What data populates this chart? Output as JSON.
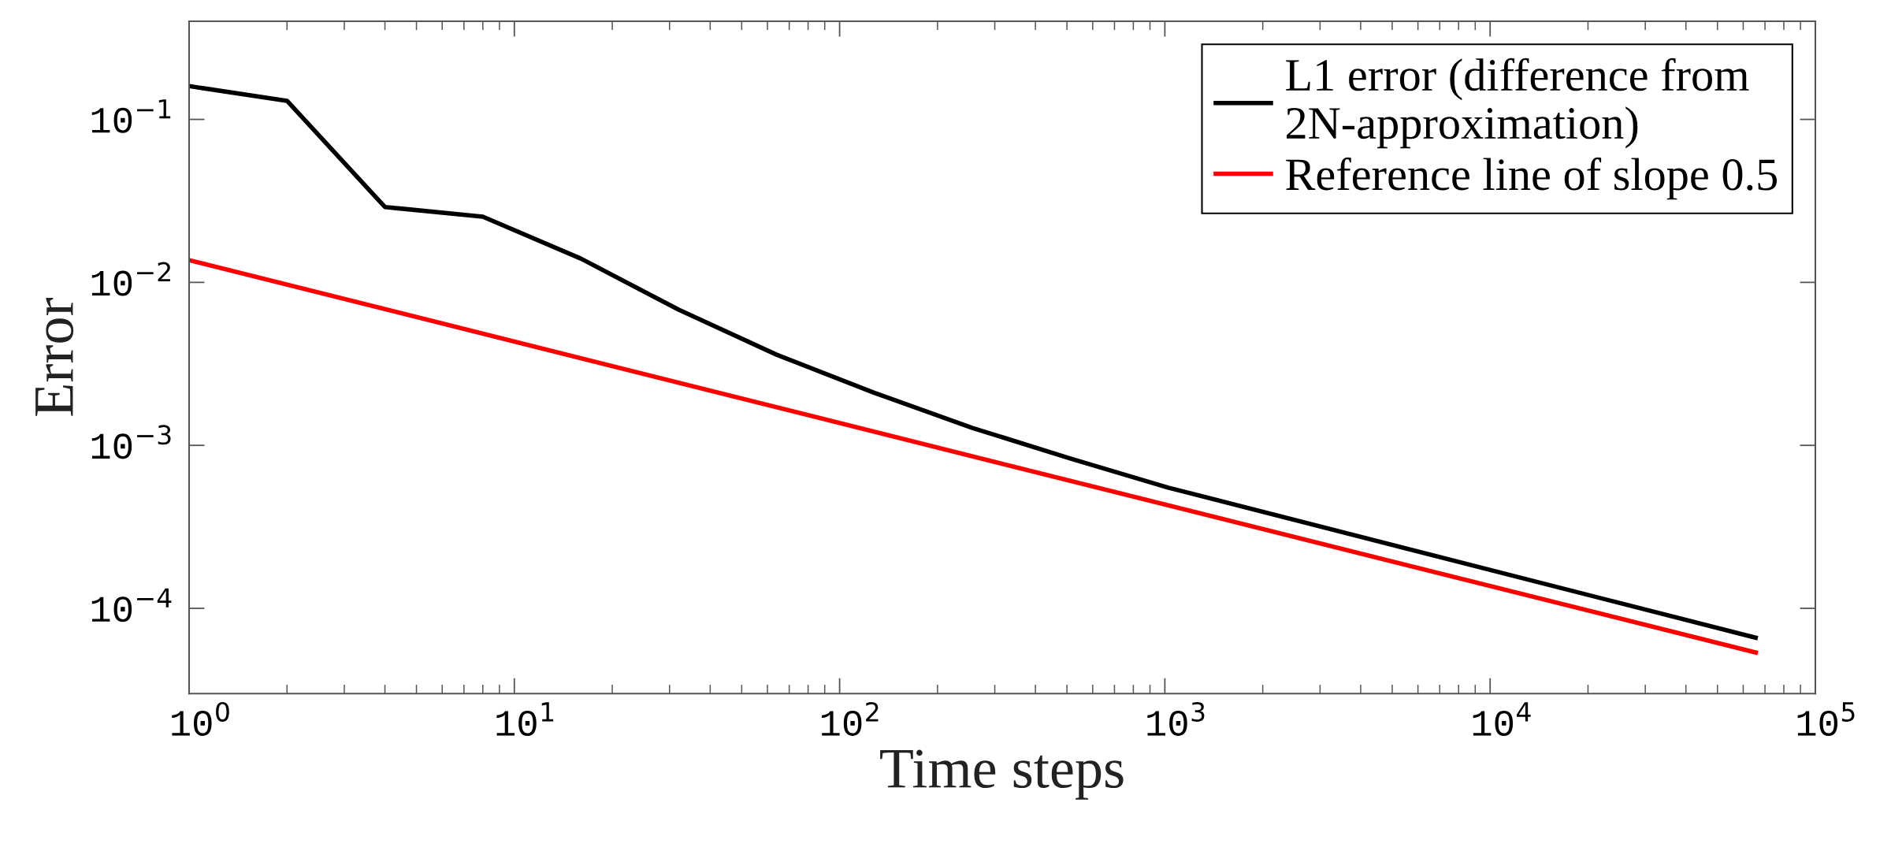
{
  "chart_data": {
    "type": "line",
    "xlabel": "Time steps",
    "ylabel": "Error",
    "log": "xy",
    "xlim": [
      1,
      100000
    ],
    "ylim": [
      3e-05,
      0.4
    ],
    "xticks": [
      {
        "value": 1,
        "label": "10$^{0}$"
      },
      {
        "value": 10,
        "label": "10$^{1}$"
      },
      {
        "value": 100,
        "label": "10$^{2}$"
      },
      {
        "value": 1000,
        "label": "10$^{3}$"
      },
      {
        "value": 10000,
        "label": "10$^{4}$"
      },
      {
        "value": 100000,
        "label": "10$^{5}$"
      }
    ],
    "yticks": [
      {
        "value": 0.0001,
        "label": "10$^{−4}$"
      },
      {
        "value": 0.001,
        "label": "10$^{−3}$"
      },
      {
        "value": 0.01,
        "label": "10$^{−2}$"
      },
      {
        "value": 0.1,
        "label": "10$^{−1}$"
      }
    ],
    "grid": false,
    "legend": "top right",
    "marker": "none",
    "line_style": "solid",
    "series": [
      {
        "name": "L1 error (difference from\n2N-approximation)",
        "color": "#000000",
        "x": [
          1,
          2,
          4,
          8,
          16,
          32,
          64,
          128,
          256,
          512,
          1024,
          65536
        ],
        "values": [
          0.16,
          0.13,
          0.029,
          0.0253,
          0.014,
          0.0068,
          0.0036,
          0.0021,
          0.00128,
          0.00083,
          0.00055,
          6.6e-05
        ]
      },
      {
        "name": "Reference line of slope 0.5",
        "color": "#ff0000",
        "x": [
          1,
          65536
        ],
        "values": [
          0.0137,
          5.36e-05
        ]
      }
    ]
  }
}
